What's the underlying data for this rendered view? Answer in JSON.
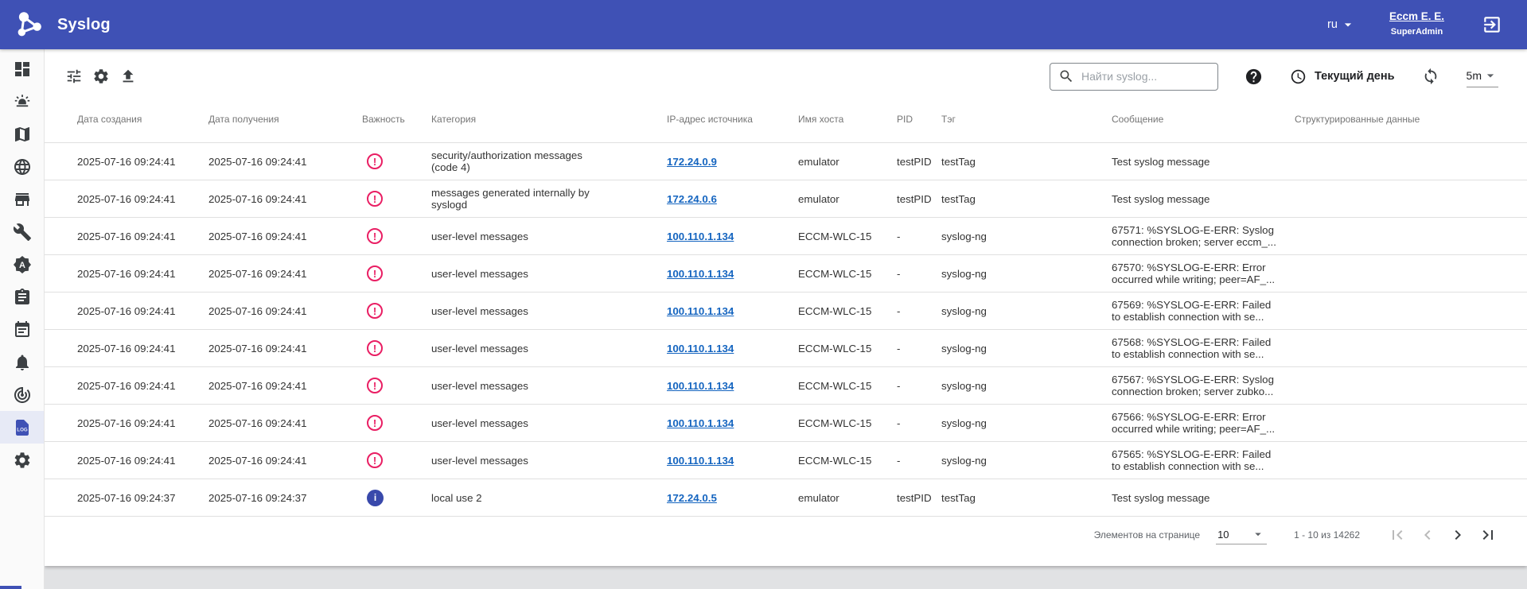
{
  "app": {
    "title": "Syslog"
  },
  "header": {
    "language": "ru",
    "user_name": "Eccm E. E.",
    "user_role": "SuperAdmin"
  },
  "sidebar": {
    "items": [
      {
        "id": "dashboard",
        "icon": "dashboard",
        "selected": false
      },
      {
        "id": "emergency",
        "icon": "emergency",
        "selected": false
      },
      {
        "id": "map",
        "icon": "map",
        "selected": false
      },
      {
        "id": "web",
        "icon": "globe",
        "selected": false
      },
      {
        "id": "storefront",
        "icon": "storefront",
        "selected": false
      },
      {
        "id": "tools",
        "icon": "wrench",
        "selected": false
      },
      {
        "id": "alerts",
        "icon": "seal-a",
        "selected": false
      },
      {
        "id": "tasks",
        "icon": "clipboard",
        "selected": false
      },
      {
        "id": "events",
        "icon": "calendar",
        "selected": false
      },
      {
        "id": "notifications",
        "icon": "bell",
        "selected": false
      },
      {
        "id": "monitoring",
        "icon": "track-changes",
        "selected": false
      },
      {
        "id": "syslog",
        "icon": "log-file",
        "selected": true
      },
      {
        "id": "settings",
        "icon": "gear",
        "selected": false
      }
    ]
  },
  "toolbar": {
    "search_placeholder": "Найти syslog...",
    "period_label": "Текущий день",
    "refresh_interval": "5m"
  },
  "table": {
    "columns": [
      "Дата создания",
      "Дата получения",
      "Важность",
      "Категория",
      "IP-адрес источника",
      "Имя хоста",
      "PID",
      "Тэг",
      "Сообщение",
      "Структурированные данные"
    ],
    "rows": [
      {
        "created": "2025-07-16 09:24:41",
        "received": "2025-07-16 09:24:41",
        "severity": "error",
        "category": "security/authorization messages (code 4)",
        "ip": "172.24.0.9",
        "host": "emulator",
        "pid": "testPID",
        "tag": "testTag",
        "message": "Test syslog message",
        "structured": ""
      },
      {
        "created": "2025-07-16 09:24:41",
        "received": "2025-07-16 09:24:41",
        "severity": "error",
        "category": "messages generated internally by syslogd",
        "ip": "172.24.0.6",
        "host": "emulator",
        "pid": "testPID",
        "tag": "testTag",
        "message": "Test syslog message",
        "structured": ""
      },
      {
        "created": "2025-07-16 09:24:41",
        "received": "2025-07-16 09:24:41",
        "severity": "error",
        "category": "user-level messages",
        "ip": "100.110.1.134",
        "host": "ECCM-WLC-15",
        "pid": "-",
        "tag": "syslog-ng",
        "message": "67571: %SYSLOG-E-ERR: Syslog connection broken; server eccm_...",
        "structured": ""
      },
      {
        "created": "2025-07-16 09:24:41",
        "received": "2025-07-16 09:24:41",
        "severity": "error",
        "category": "user-level messages",
        "ip": "100.110.1.134",
        "host": "ECCM-WLC-15",
        "pid": "-",
        "tag": "syslog-ng",
        "message": "67570: %SYSLOG-E-ERR: Error occurred while writing; peer=AF_...",
        "structured": ""
      },
      {
        "created": "2025-07-16 09:24:41",
        "received": "2025-07-16 09:24:41",
        "severity": "error",
        "category": "user-level messages",
        "ip": "100.110.1.134",
        "host": "ECCM-WLC-15",
        "pid": "-",
        "tag": "syslog-ng",
        "message": "67569: %SYSLOG-E-ERR: Failed to establish connection with se...",
        "structured": ""
      },
      {
        "created": "2025-07-16 09:24:41",
        "received": "2025-07-16 09:24:41",
        "severity": "error",
        "category": "user-level messages",
        "ip": "100.110.1.134",
        "host": "ECCM-WLC-15",
        "pid": "-",
        "tag": "syslog-ng",
        "message": "67568: %SYSLOG-E-ERR: Failed to establish connection with se...",
        "structured": ""
      },
      {
        "created": "2025-07-16 09:24:41",
        "received": "2025-07-16 09:24:41",
        "severity": "error",
        "category": "user-level messages",
        "ip": "100.110.1.134",
        "host": "ECCM-WLC-15",
        "pid": "-",
        "tag": "syslog-ng",
        "message": "67567: %SYSLOG-E-ERR: Syslog connection broken; server zubko...",
        "structured": ""
      },
      {
        "created": "2025-07-16 09:24:41",
        "received": "2025-07-16 09:24:41",
        "severity": "error",
        "category": "user-level messages",
        "ip": "100.110.1.134",
        "host": "ECCM-WLC-15",
        "pid": "-",
        "tag": "syslog-ng",
        "message": "67566: %SYSLOG-E-ERR: Error occurred while writing; peer=AF_...",
        "structured": ""
      },
      {
        "created": "2025-07-16 09:24:41",
        "received": "2025-07-16 09:24:41",
        "severity": "error",
        "category": "user-level messages",
        "ip": "100.110.1.134",
        "host": "ECCM-WLC-15",
        "pid": "-",
        "tag": "syslog-ng",
        "message": "67565: %SYSLOG-E-ERR: Failed to establish connection with se...",
        "structured": ""
      },
      {
        "created": "2025-07-16 09:24:37",
        "received": "2025-07-16 09:24:37",
        "severity": "info",
        "category": "local use 2",
        "ip": "172.24.0.5",
        "host": "emulator",
        "pid": "testPID",
        "tag": "testTag",
        "message": "Test syslog message",
        "structured": ""
      }
    ]
  },
  "pagination": {
    "items_per_page_label": "Элементов на странице",
    "items_per_page": "10",
    "range_label": "1 - 10 из 14262"
  },
  "colors": {
    "header_bg": "#3f51b5",
    "link": "#1565c0",
    "severity_error": "#e91e63",
    "severity_info": "#3949ab",
    "selected_nav_bg": "#e7eaf6"
  }
}
